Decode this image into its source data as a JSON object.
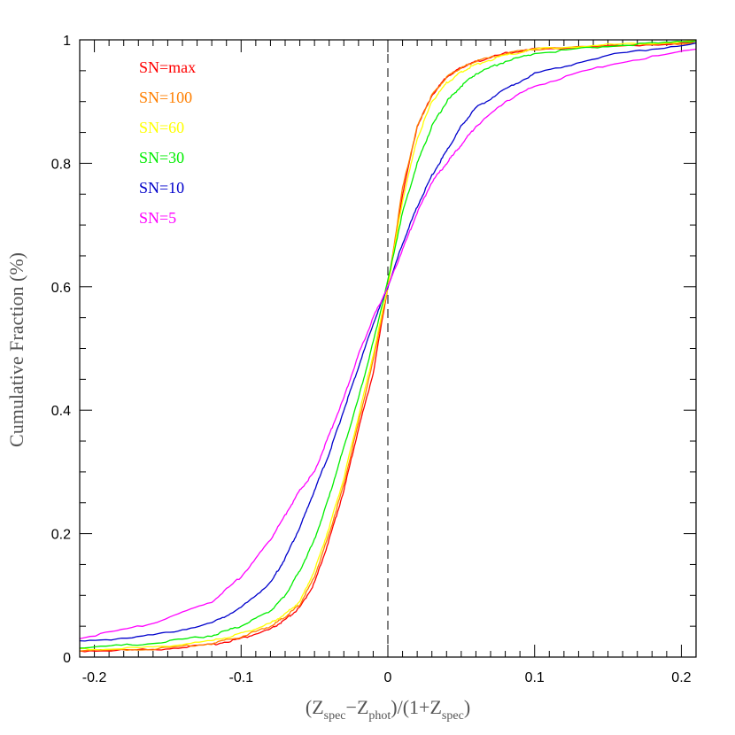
{
  "chart_data": {
    "type": "line",
    "title": "",
    "xlabel": {
      "Z": "Z",
      "spec": "spec",
      "phot": "phot",
      "open": "(",
      "minus": "−",
      "mid": ")/(1+",
      "close": ")"
    },
    "ylabel": "Cumulative Fraction (%)",
    "xlim": [
      -0.21,
      0.21
    ],
    "ylim": [
      0,
      1
    ],
    "x_ticks": [
      "-0.2",
      "-0.1",
      "0",
      "0.1",
      "0.2"
    ],
    "y_ticks": [
      "0",
      "0.2",
      "0.4",
      "0.6",
      "0.8",
      "1"
    ],
    "reference_line": {
      "x": 0,
      "style": "dashed"
    },
    "legend_position": "top-left",
    "series": [
      {
        "name": "SN=max",
        "color": "#ff0000",
        "x": [
          -0.21,
          -0.16,
          -0.12,
          -0.1,
          -0.08,
          -0.07,
          -0.06,
          -0.05,
          -0.04,
          -0.03,
          -0.02,
          -0.01,
          0,
          0.01,
          0.02,
          0.03,
          0.04,
          0.05,
          0.06,
          0.08,
          0.1,
          0.15,
          0.21
        ],
        "y": [
          0.01,
          0.012,
          0.02,
          0.03,
          0.045,
          0.06,
          0.08,
          0.12,
          0.19,
          0.27,
          0.37,
          0.46,
          0.6,
          0.75,
          0.86,
          0.91,
          0.94,
          0.955,
          0.965,
          0.978,
          0.985,
          0.99,
          0.995
        ]
      },
      {
        "name": "SN=100",
        "color": "#ff7f00",
        "x": [
          -0.21,
          -0.16,
          -0.12,
          -0.1,
          -0.08,
          -0.07,
          -0.06,
          -0.05,
          -0.04,
          -0.03,
          -0.02,
          -0.01,
          0,
          0.01,
          0.02,
          0.03,
          0.04,
          0.05,
          0.06,
          0.08,
          0.1,
          0.15,
          0.21
        ],
        "y": [
          0.01,
          0.013,
          0.022,
          0.033,
          0.05,
          0.065,
          0.085,
          0.13,
          0.2,
          0.28,
          0.38,
          0.48,
          0.6,
          0.76,
          0.86,
          0.91,
          0.94,
          0.955,
          0.965,
          0.978,
          0.985,
          0.99,
          0.995
        ]
      },
      {
        "name": "SN=60",
        "color": "#ffff00",
        "x": [
          -0.21,
          -0.16,
          -0.12,
          -0.1,
          -0.08,
          -0.07,
          -0.06,
          -0.05,
          -0.04,
          -0.03,
          -0.02,
          -0.01,
          0,
          0.01,
          0.02,
          0.03,
          0.04,
          0.05,
          0.06,
          0.08,
          0.1,
          0.15,
          0.21
        ],
        "y": [
          0.012,
          0.016,
          0.026,
          0.038,
          0.055,
          0.07,
          0.09,
          0.14,
          0.21,
          0.29,
          0.39,
          0.49,
          0.6,
          0.74,
          0.84,
          0.9,
          0.93,
          0.948,
          0.96,
          0.975,
          0.985,
          0.992,
          0.998
        ]
      },
      {
        "name": "SN=30",
        "color": "#00ee00",
        "x": [
          -0.21,
          -0.16,
          -0.12,
          -0.1,
          -0.08,
          -0.07,
          -0.06,
          -0.05,
          -0.04,
          -0.03,
          -0.02,
          -0.01,
          0,
          0.01,
          0.02,
          0.03,
          0.04,
          0.05,
          0.06,
          0.08,
          0.1,
          0.15,
          0.21
        ],
        "y": [
          0.015,
          0.022,
          0.035,
          0.05,
          0.075,
          0.1,
          0.14,
          0.19,
          0.26,
          0.34,
          0.42,
          0.51,
          0.61,
          0.72,
          0.8,
          0.86,
          0.9,
          0.925,
          0.945,
          0.965,
          0.978,
          0.99,
          0.998
        ]
      },
      {
        "name": "SN=10",
        "color": "#0000cc",
        "x": [
          -0.21,
          -0.16,
          -0.12,
          -0.1,
          -0.08,
          -0.07,
          -0.06,
          -0.05,
          -0.04,
          -0.03,
          -0.02,
          -0.01,
          0,
          0.01,
          0.02,
          0.03,
          0.04,
          0.05,
          0.06,
          0.08,
          0.1,
          0.15,
          0.21
        ],
        "y": [
          0.025,
          0.035,
          0.055,
          0.08,
          0.12,
          0.16,
          0.21,
          0.27,
          0.33,
          0.4,
          0.47,
          0.54,
          0.6,
          0.67,
          0.73,
          0.78,
          0.82,
          0.86,
          0.89,
          0.92,
          0.945,
          0.975,
          0.995
        ]
      },
      {
        "name": "SN=5",
        "color": "#ff00ff",
        "x": [
          -0.21,
          -0.16,
          -0.12,
          -0.1,
          -0.08,
          -0.07,
          -0.06,
          -0.05,
          -0.04,
          -0.03,
          -0.02,
          -0.01,
          0,
          0.01,
          0.02,
          0.03,
          0.04,
          0.05,
          0.06,
          0.08,
          0.1,
          0.15,
          0.21
        ],
        "y": [
          0.03,
          0.055,
          0.09,
          0.13,
          0.19,
          0.23,
          0.27,
          0.3,
          0.36,
          0.42,
          0.49,
          0.55,
          0.6,
          0.66,
          0.72,
          0.77,
          0.8,
          0.83,
          0.86,
          0.9,
          0.925,
          0.96,
          0.985
        ]
      }
    ]
  }
}
